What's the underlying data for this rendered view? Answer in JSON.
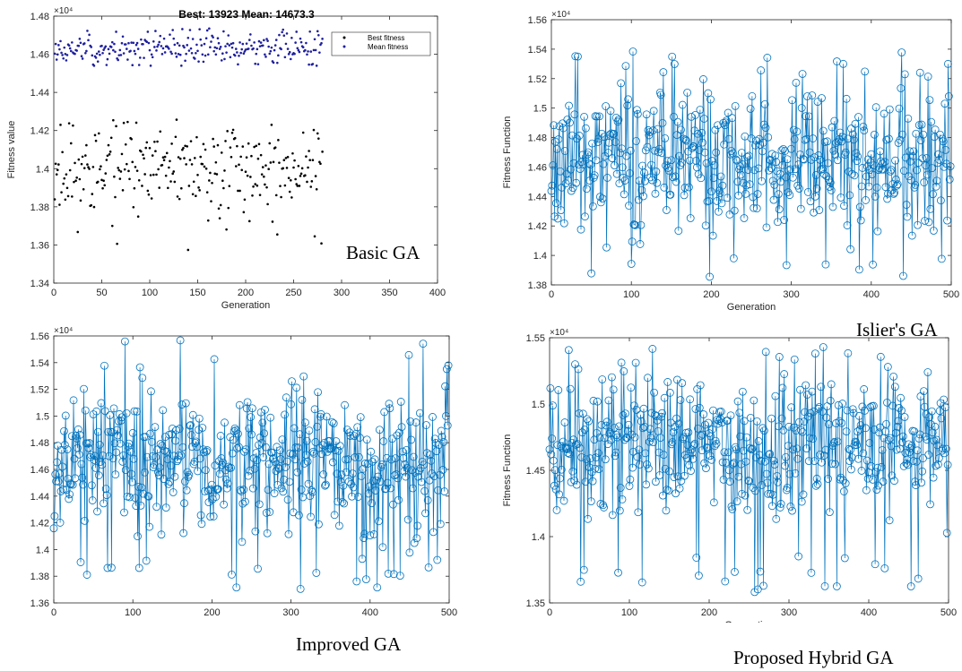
{
  "chart_data": [
    {
      "id": "basic",
      "type": "scatter",
      "title": "Best: 13923 Mean: 14673.3",
      "xlabel": "Generation",
      "ylabel": "Fitness value",
      "caption": "Basic GA",
      "exponent_label": "×10⁴",
      "xlim": [
        0,
        400
      ],
      "ylim": [
        13400,
        14800
      ],
      "xticks": [
        0,
        50,
        100,
        150,
        200,
        250,
        300,
        350,
        400
      ],
      "yticks": [
        13400,
        13600,
        13800,
        14000,
        14200,
        14400,
        14600,
        14800
      ],
      "ytick_labels": [
        "1.34",
        "1.36",
        "1.38",
        "1.4",
        "1.42",
        "1.44",
        "1.46",
        "1.48"
      ],
      "legend": [
        "Best fitness",
        "Mean fitness"
      ],
      "series": [
        {
          "name": "Best fitness",
          "color": "#000000",
          "n": 280,
          "center": 13990,
          "amp": 130,
          "min": 13560,
          "max": 14260
        },
        {
          "name": "Mean fitness",
          "color": "#1f1f9e",
          "n": 280,
          "center": 14630,
          "amp": 45,
          "min": 14540,
          "max": 14740
        }
      ]
    },
    {
      "id": "islier",
      "type": "line",
      "title": "",
      "xlabel": "Generation",
      "ylabel": "Fitness Function",
      "caption": "Islier's GA",
      "exponent_label": "×10⁴",
      "xlim": [
        0,
        500
      ],
      "ylim": [
        13800,
        15600
      ],
      "xticks": [
        0,
        100,
        200,
        300,
        400,
        500
      ],
      "yticks": [
        13800,
        14000,
        14200,
        14400,
        14600,
        14800,
        15000,
        15200,
        15400,
        15600
      ],
      "ytick_labels": [
        "1.38",
        "1.4",
        "1.42",
        "1.44",
        "1.46",
        "1.48",
        "1.5",
        "1.52",
        "1.54",
        "1.56"
      ],
      "series": [
        {
          "name": "",
          "color": "#0072bd",
          "n": 500,
          "center": 14650,
          "amp": 250,
          "min": 13850,
          "max": 15410
        }
      ]
    },
    {
      "id": "improved",
      "type": "line",
      "title": "",
      "xlabel": "",
      "ylabel": "",
      "caption": "Improved GA",
      "exponent_label": "×10⁴",
      "xlim": [
        0,
        500
      ],
      "ylim": [
        13600,
        15600
      ],
      "xticks": [
        0,
        100,
        200,
        300,
        400,
        500
      ],
      "yticks": [
        13600,
        13800,
        14000,
        14200,
        14400,
        14600,
        14800,
        15000,
        15200,
        15400,
        15600
      ],
      "ytick_labels": [
        "1.36",
        "1.38",
        "1.4",
        "1.42",
        "1.44",
        "1.46",
        "1.48",
        "1.5",
        "1.52",
        "1.54",
        "1.56"
      ],
      "series": [
        {
          "name": "",
          "color": "#0072bd",
          "n": 500,
          "center": 14680,
          "amp": 270,
          "min": 13700,
          "max": 15590
        }
      ]
    },
    {
      "id": "hybrid",
      "type": "line",
      "title": "",
      "xlabel": "Generation",
      "ylabel": "Fitness Function",
      "caption": "Proposed Hybrid GA",
      "exponent_label": "×10⁴",
      "xlim": [
        0,
        500
      ],
      "ylim": [
        13500,
        15500
      ],
      "xticks": [
        0,
        100,
        200,
        300,
        400,
        500
      ],
      "yticks": [
        13500,
        14000,
        14500,
        15000,
        15500
      ],
      "ytick_labels": [
        "1.35",
        "1.4",
        "1.45",
        "1.5",
        "1.55"
      ],
      "series": [
        {
          "name": "",
          "color": "#0072bd",
          "n": 500,
          "center": 14700,
          "amp": 270,
          "min": 13570,
          "max": 15470
        }
      ]
    }
  ]
}
